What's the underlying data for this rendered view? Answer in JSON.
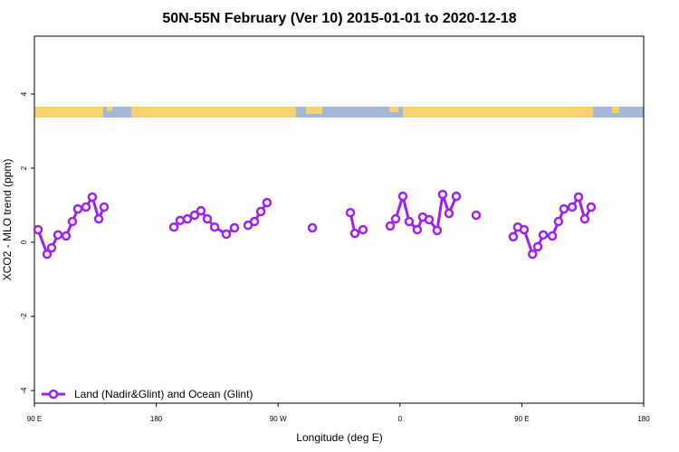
{
  "chart_data": {
    "type": "line",
    "title": "50N-55N February (Ver 10)   2015-01-01 to 2020-12-18",
    "x_label": "Longitude (deg E)",
    "y_label": "XCO2 - MLO trend (ppm)",
    "xlim": [
      90,
      540
    ],
    "xticks": [
      {
        "value": 90,
        "label": "90 E"
      },
      {
        "value": 180,
        "label": "180"
      },
      {
        "value": 270,
        "label": "90 W"
      },
      {
        "value": 360,
        "label": "0"
      },
      {
        "value": 450,
        "label": "90 E"
      },
      {
        "value": 540,
        "label": "180"
      }
    ],
    "ylim": [
      -4.34,
      5.56
    ],
    "yticks": [
      -4,
      -2,
      0,
      2,
      4
    ],
    "legend_position": "bottom-left",
    "series": [
      {
        "name": "Land (Nadir&Glint) and Ocean (Glint)",
        "color": "#a020f0",
        "x": [
          92.7,
          99.4,
          102.7,
          107.4,
          113.4,
          118.1,
          122.1,
          128.1,
          132.8,
          137.5,
          141.5,
          null,
          193.0,
          197.6,
          203.0,
          208.3,
          213.0,
          217.7,
          223.1,
          231.7,
          237.8,
          null,
          247.8,
          252.5,
          257.2,
          261.8,
          null,
          295.3,
          null,
          323.4,
          326.7,
          332.7,
          null,
          352.8,
          356.8,
          362.1,
          366.8,
          372.8,
          376.8,
          381.5,
          387.5,
          391.5,
          396.2,
          401.6,
          null,
          416.3,
          null,
          443.7,
          447.0,
          451.7,
          457.9,
          461.8,
          465.8,
          472.5,
          477.1,
          481.1,
          487.2,
          491.9,
          496.5,
          501.2
        ],
        "values": [
          0.34,
          -0.32,
          -0.15,
          0.2,
          0.17,
          0.56,
          0.9,
          0.95,
          1.22,
          0.63,
          0.95,
          null,
          0.41,
          0.59,
          0.63,
          0.73,
          0.85,
          0.63,
          0.41,
          0.22,
          0.39,
          null,
          0.46,
          0.56,
          0.83,
          1.07,
          null,
          0.39,
          null,
          0.8,
          0.24,
          0.34,
          null,
          0.44,
          0.63,
          1.24,
          0.56,
          0.34,
          0.68,
          0.61,
          0.32,
          1.29,
          0.78,
          1.24,
          null,
          0.73,
          null,
          0.15,
          0.41,
          0.34,
          -0.32,
          -0.12,
          0.2,
          0.17,
          0.56,
          0.9,
          0.95,
          1.22,
          0.63,
          0.95
        ]
      }
    ]
  }
}
